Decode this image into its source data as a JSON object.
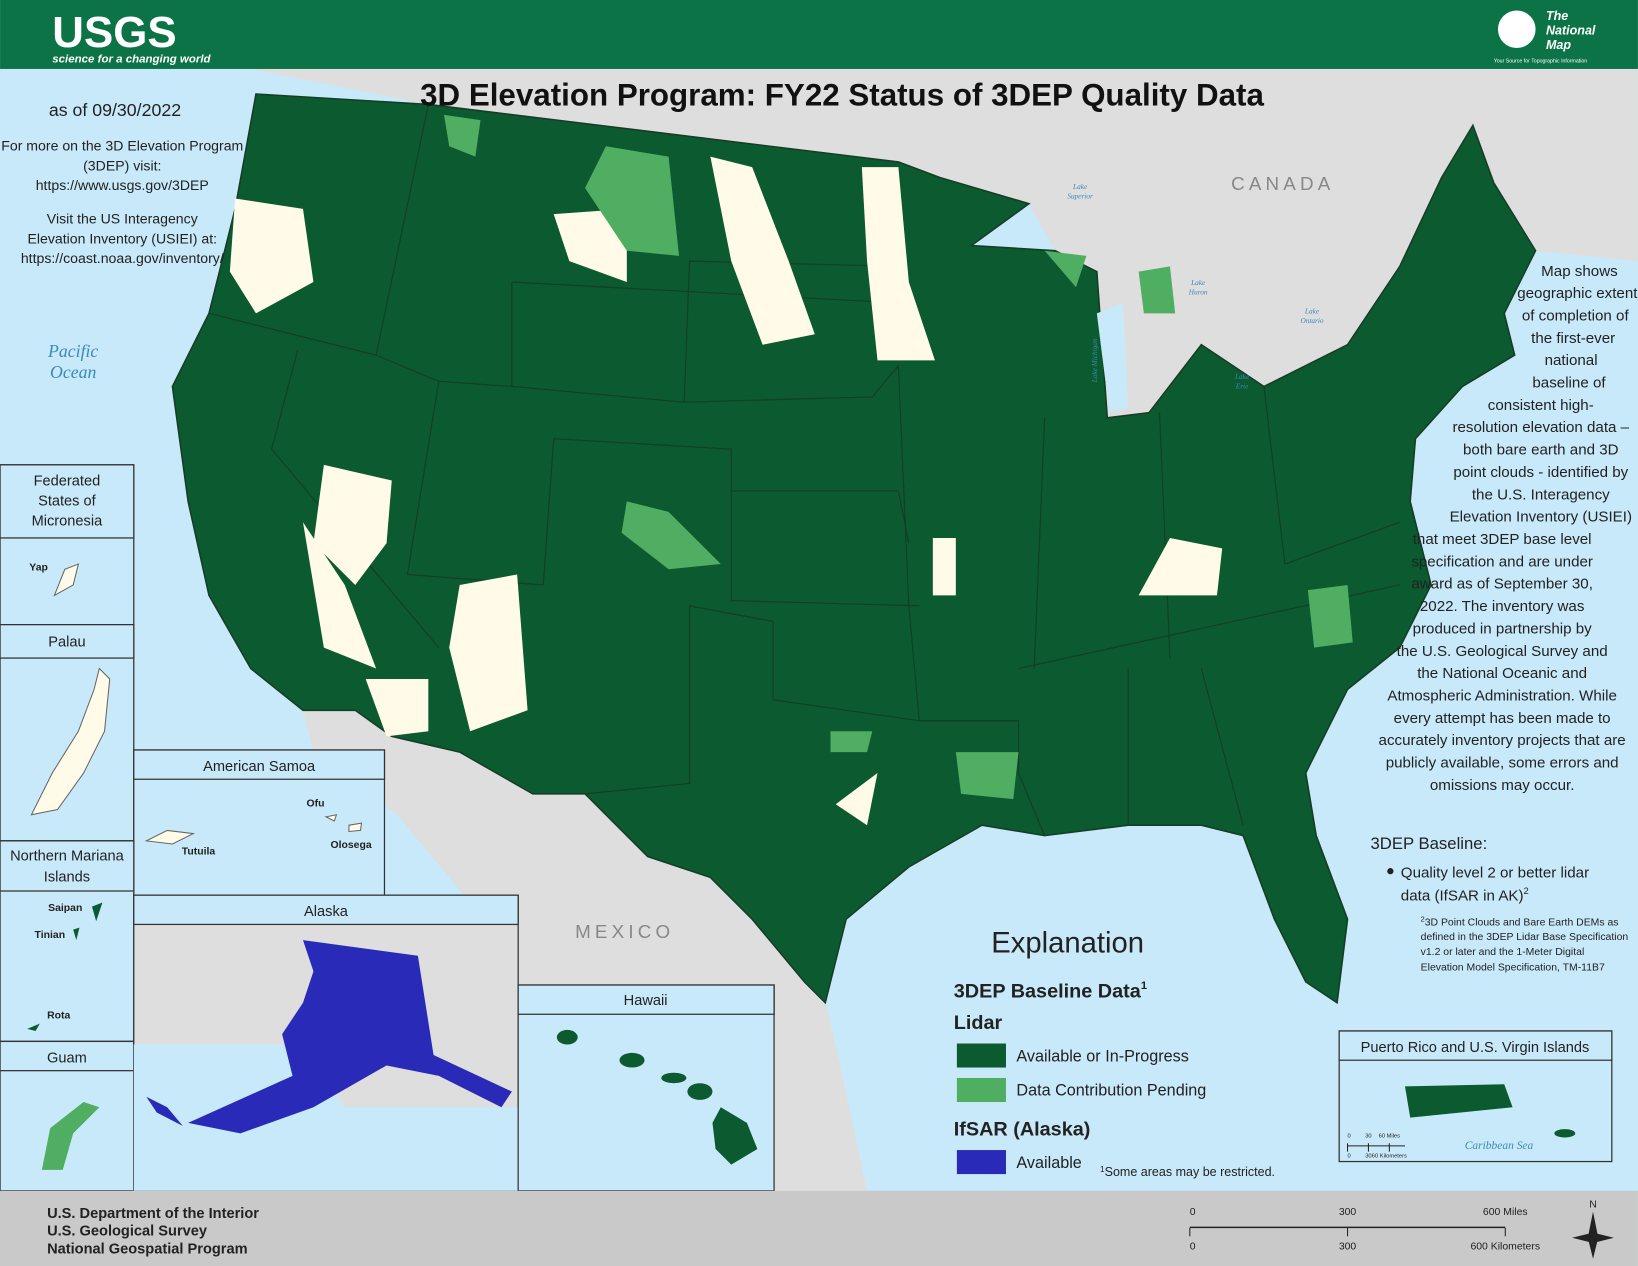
{
  "header": {
    "logo": "USGS",
    "tagline": "science for a changing world",
    "brand": [
      "The",
      "National",
      "Map"
    ],
    "brand_tagline": "Your Source for Topographic Information"
  },
  "title": "3D Elevation Program: FY22 Status of 3DEP Quality Data",
  "date": "as of 09/30/2022",
  "links": [
    "For more on the 3D Elevation Program",
    "(3DEP) visit:",
    "https://www.usgs.gov/3DEP",
    "Visit the US Interagency",
    "Elevation Inventory (USIEI) at:",
    "https://coast.noaa.gov/inventory/"
  ],
  "labels": {
    "pacific": [
      "Pacific",
      "Ocean"
    ],
    "canada": "CANADA",
    "mexico": "MEXICO",
    "lake_superior": [
      "Lake",
      "Superior"
    ],
    "lake_huron": [
      "Lake",
      "Huron"
    ],
    "lake_michigan": "Lake Michigan",
    "lake_ontario": [
      "Lake",
      "Ontario"
    ],
    "lake_erie": [
      "Lake",
      "Erie"
    ]
  },
  "insets": {
    "micronesia": {
      "title": [
        "Federated",
        "States of",
        "Micronesia"
      ],
      "places": [
        "Yap"
      ]
    },
    "palau": {
      "title": "Palau"
    },
    "samoa": {
      "title": "American Samoa",
      "places": [
        "Ofu",
        "Olosega",
        "Tutuila"
      ]
    },
    "mariana": {
      "title": [
        "Northern Mariana",
        "Islands"
      ],
      "places": [
        "Saipan",
        "Tinian",
        "Rota"
      ]
    },
    "guam": {
      "title": "Guam"
    },
    "alaska": {
      "title": "Alaska"
    },
    "hawaii": {
      "title": "Hawaii"
    },
    "puerto_rico": {
      "title": "Puerto Rico and U.S. Virgin Islands",
      "places": [
        "Caribbean Sea"
      ],
      "scale": {
        "miles": [
          "0",
          "30",
          "60 Miles"
        ],
        "km": [
          "0",
          "30",
          "60 Kilometers"
        ]
      }
    }
  },
  "description": [
    "Map shows",
    "geographic extent",
    "of completion of",
    "the first-ever",
    "national",
    "baseline of",
    "consistent high-",
    "resolution elevation data –",
    "both bare earth and 3D",
    "point clouds - identified by",
    "the U.S. Interagency",
    "Elevation Inventory (USIEI)",
    "that meet 3DEP base level",
    "specification and are under",
    "award as of September 30,",
    "2022. The inventory was",
    "produced in partnership by",
    "the U.S. Geological Survey and",
    "the National Oceanic and",
    "Atmospheric Administration. While",
    "every attempt has been made to",
    "accurately inventory projects that are",
    "publicly available, some errors and",
    "omissions may occur."
  ],
  "baseline": {
    "heading": "3DEP Baseline:",
    "item": [
      "Quality level 2 or better lidar",
      "data (IfSAR in AK)"
    ],
    "mark": "2",
    "note_mark": "2",
    "note": [
      "3D Point Clouds and Bare Earth DEMs as",
      "defined in the 3DEP Lidar Base Specification",
      "v1.2 or later and the 1-Meter Digital",
      "Elevation Model Specification, TM-11B7"
    ]
  },
  "legend": {
    "title": "Explanation",
    "heading": "3DEP Baseline Data",
    "mark": "1",
    "groups": [
      {
        "name": "Lidar",
        "items": [
          {
            "label": "Available or In-Progress",
            "color": "#0b5a30"
          },
          {
            "label": "Data Contribution Pending",
            "color": "#4fae62"
          }
        ]
      },
      {
        "name": "IfSAR (Alaska)",
        "items": [
          {
            "label": "Available",
            "color": "#2a2ab8"
          }
        ]
      }
    ],
    "note_mark": "1",
    "note": "Some areas may be restricted."
  },
  "footer": {
    "agency": [
      "U.S. Department of the Interior",
      "U.S. Geological Survey",
      "National Geospatial Program"
    ],
    "scale": {
      "miles": [
        "0",
        "300",
        "600 Miles"
      ],
      "km": [
        "0",
        "300",
        "600 Kilometers"
      ]
    },
    "north": "N"
  }
}
